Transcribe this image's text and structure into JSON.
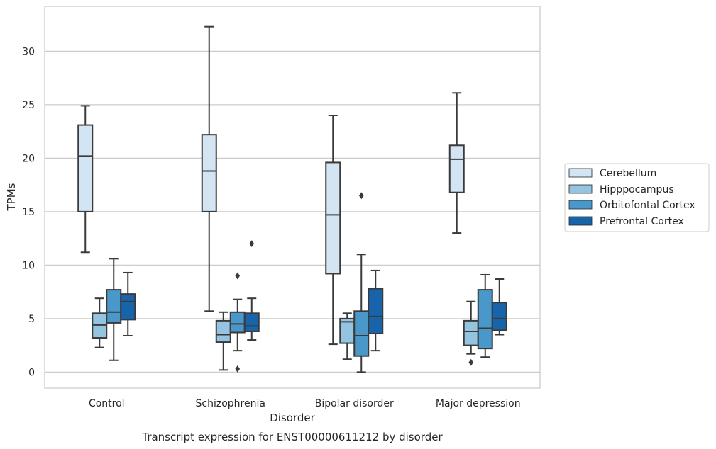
{
  "caption": "Transcript expression for ENST00000611212 by disorder",
  "chart_data": {
    "type": "box",
    "xlabel": "Disorder",
    "ylabel": "TPMs",
    "ylim": [
      -1.5,
      34.2
    ],
    "yticks": [
      0,
      5,
      10,
      15,
      20,
      25,
      30
    ],
    "grid": true,
    "legend_position": "right",
    "categories": [
      "Control",
      "Schizophrenia",
      "Bipolar disorder",
      "Major depression"
    ],
    "series": [
      {
        "name": "Cerebellum",
        "color": "#d3e4f3",
        "boxes": [
          {
            "whisker_low": 11.2,
            "q1": 15.0,
            "median": 20.2,
            "q3": 23.1,
            "whisker_high": 24.9,
            "outliers": []
          },
          {
            "whisker_low": 5.7,
            "q1": 15.0,
            "median": 18.8,
            "q3": 22.2,
            "whisker_high": 32.3,
            "outliers": []
          },
          {
            "whisker_low": 2.6,
            "q1": 9.2,
            "median": 14.7,
            "q3": 19.6,
            "whisker_high": 24.0,
            "outliers": []
          },
          {
            "whisker_low": 13.0,
            "q1": 16.8,
            "median": 19.9,
            "q3": 21.2,
            "whisker_high": 26.1,
            "outliers": []
          }
        ]
      },
      {
        "name": "Hipppocampus",
        "color": "#94c4df",
        "boxes": [
          {
            "whisker_low": 2.3,
            "q1": 3.2,
            "median": 4.4,
            "q3": 5.5,
            "whisker_high": 6.9,
            "outliers": []
          },
          {
            "whisker_low": 0.2,
            "q1": 2.8,
            "median": 3.5,
            "q3": 4.8,
            "whisker_high": 5.6,
            "outliers": []
          },
          {
            "whisker_low": 1.2,
            "q1": 2.7,
            "median": 4.7,
            "q3": 5.0,
            "whisker_high": 5.5,
            "outliers": []
          },
          {
            "whisker_low": 1.7,
            "q1": 2.5,
            "median": 3.8,
            "q3": 4.8,
            "whisker_high": 6.6,
            "outliers": [
              0.9
            ]
          }
        ]
      },
      {
        "name": "Orbitofontal Cortex",
        "color": "#4a98c9",
        "boxes": [
          {
            "whisker_low": 1.1,
            "q1": 4.6,
            "median": 5.6,
            "q3": 7.7,
            "whisker_high": 10.6,
            "outliers": []
          },
          {
            "whisker_low": 2.0,
            "q1": 3.7,
            "median": 4.5,
            "q3": 5.6,
            "whisker_high": 6.8,
            "outliers": [
              9.0,
              0.3
            ]
          },
          {
            "whisker_low": 0.0,
            "q1": 1.5,
            "median": 3.4,
            "q3": 5.7,
            "whisker_high": 11.0,
            "outliers": [
              16.5
            ]
          },
          {
            "whisker_low": 1.4,
            "q1": 2.2,
            "median": 4.1,
            "q3": 7.7,
            "whisker_high": 9.1,
            "outliers": []
          }
        ]
      },
      {
        "name": "Prefrontal Cortex",
        "color": "#1764ab",
        "boxes": [
          {
            "whisker_low": 3.4,
            "q1": 4.9,
            "median": 6.6,
            "q3": 7.3,
            "whisker_high": 9.3,
            "outliers": []
          },
          {
            "whisker_low": 3.0,
            "q1": 3.8,
            "median": 4.3,
            "q3": 5.5,
            "whisker_high": 6.9,
            "outliers": [
              12.0
            ]
          },
          {
            "whisker_low": 2.0,
            "q1": 3.6,
            "median": 5.2,
            "q3": 7.8,
            "whisker_high": 9.5,
            "outliers": []
          },
          {
            "whisker_low": 3.5,
            "q1": 3.9,
            "median": 5.0,
            "q3": 6.5,
            "whisker_high": 8.7,
            "outliers": []
          }
        ]
      }
    ]
  }
}
